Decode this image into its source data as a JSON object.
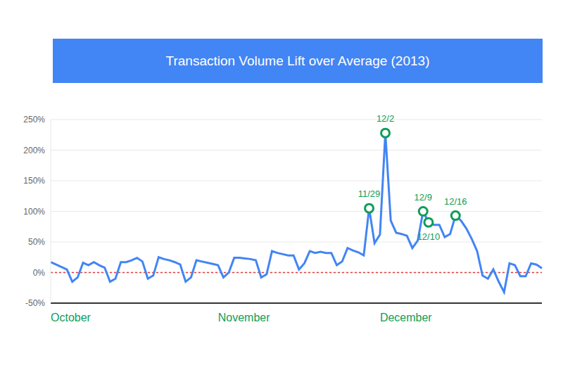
{
  "chart_data": {
    "type": "line",
    "title": "Transaction Volume Lift over Average (2013)",
    "categories": [
      "October",
      null,
      null,
      null,
      null,
      null,
      null,
      null,
      null,
      null,
      null,
      null,
      null,
      null,
      null,
      null,
      null,
      null,
      null,
      null,
      null,
      null,
      null,
      null,
      null,
      null,
      null,
      null,
      null,
      null,
      null,
      "November",
      null,
      null,
      null,
      null,
      null,
      null,
      null,
      null,
      null,
      null,
      null,
      null,
      null,
      null,
      null,
      null,
      null,
      null,
      null,
      null,
      null,
      null,
      null,
      null,
      null,
      null,
      null,
      null,
      null,
      "December",
      null,
      null,
      null,
      null,
      null,
      null,
      null,
      null,
      null,
      null,
      null,
      null,
      null,
      null,
      null,
      null,
      null,
      null,
      null,
      null,
      null,
      null,
      null,
      null,
      null,
      null,
      null,
      null,
      null,
      null
    ],
    "values": [
      17,
      13,
      9,
      5,
      -15,
      -8,
      16,
      12,
      17,
      12,
      8,
      -15,
      -10,
      17,
      17,
      20,
      24,
      18,
      -10,
      -5,
      25,
      22,
      20,
      17,
      13,
      -15,
      -8,
      20,
      18,
      16,
      14,
      12,
      -8,
      0,
      24,
      24,
      23,
      22,
      20,
      -8,
      -3,
      35,
      32,
      30,
      28,
      28,
      5,
      15,
      35,
      32,
      34,
      32,
      32,
      12,
      18,
      40,
      36,
      33,
      28,
      105,
      48,
      62,
      228,
      85,
      65,
      63,
      60,
      40,
      52,
      100,
      82,
      78,
      78,
      58,
      63,
      93,
      85,
      72,
      55,
      35,
      -5,
      -10,
      5,
      -15,
      -32,
      15,
      12,
      -6,
      -6,
      15,
      13,
      7
    ],
    "color": "#4285f4",
    "ylim": [
      -50,
      250
    ],
    "yticks": [
      {
        "value": -50,
        "label": "-50%"
      },
      {
        "value": 0,
        "label": "0%"
      },
      {
        "value": 50,
        "label": "50%"
      },
      {
        "value": 100,
        "label": "100%"
      },
      {
        "value": 150,
        "label": "150%"
      },
      {
        "value": 200,
        "label": "200%"
      },
      {
        "value": 250,
        "label": "250%"
      }
    ],
    "grid": true,
    "annotations": [
      {
        "x": 59,
        "label": "11/29",
        "color": "#0f9d58"
      },
      {
        "x": 62,
        "label": "12/2",
        "color": "#0f9d58"
      },
      {
        "x": 69,
        "label": "12/9",
        "color": "#0f9d58"
      },
      {
        "x": 70,
        "label": "12/10",
        "color": "#0f9d58"
      },
      {
        "x": 75,
        "label": "12/16",
        "color": "#0f9d58"
      }
    ],
    "reference_lines": [
      {
        "y": 0,
        "color": "#e53935",
        "line_style": "dotted"
      }
    ]
  }
}
